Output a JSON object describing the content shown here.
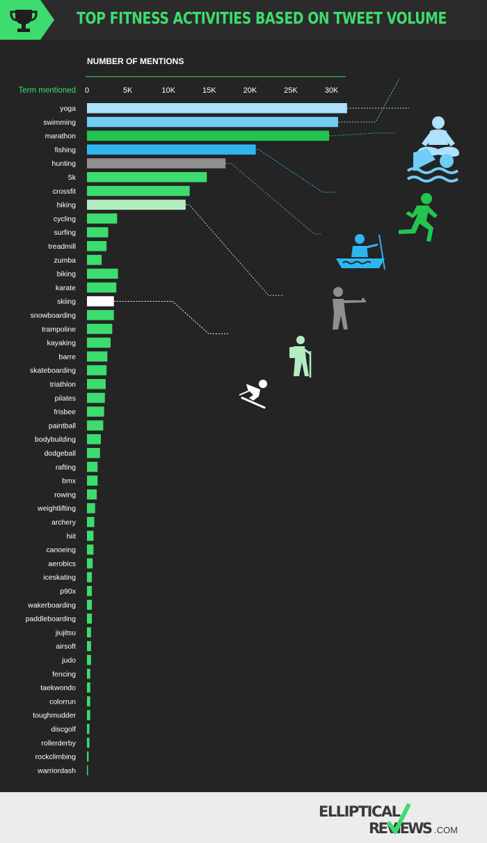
{
  "header": {
    "title": "TOP FITNESS ACTIVITIES BASED ON TWEET VOLUME",
    "trophy_icon": "trophy-icon"
  },
  "colors": {
    "background": "#242424",
    "accent_green": "#3ddc6e",
    "bar_default": "#3ddc6e"
  },
  "chart_data": {
    "type": "bar",
    "orientation": "horizontal",
    "title": "NUMBER OF MENTIONS",
    "ylabel": "Term mentioned",
    "xlim": [
      0,
      32000
    ],
    "xticks": [
      0,
      5000,
      10000,
      15000,
      20000,
      25000,
      30000
    ],
    "xtick_labels": [
      "0",
      "5K",
      "10K",
      "15K",
      "20K",
      "25K",
      "30K"
    ],
    "grid": false,
    "categories": [
      "yoga",
      "swimming",
      "marathon",
      "fishing",
      "hunting",
      "5k",
      "crossfit",
      "hiking",
      "cycling",
      "surfing",
      "treadmill",
      "zumba",
      "biking",
      "karate",
      "skiing",
      "snowboarding",
      "trampoline",
      "kayaking",
      "barre",
      "skateboarding",
      "triathlon",
      "pilates",
      "frisbee",
      "paintball",
      "bodybuilding",
      "dodgeball",
      "rafting",
      "bmx",
      "rowing",
      "weightlifting",
      "archery",
      "hiit",
      "canoeing",
      "aerobics",
      "iceskating",
      "p90x",
      "wakerboarding",
      "paddleboarding",
      "jiujitsu",
      "airsoft",
      "judo",
      "fencing",
      "taekwondo",
      "colorrun",
      "toughmudder",
      "discgolf",
      "rollerderby",
      "rockclimbing",
      "warriordash"
    ],
    "values": [
      31900,
      30800,
      29700,
      20700,
      17000,
      14700,
      12600,
      12100,
      3700,
      2600,
      2400,
      1800,
      3800,
      3600,
      3300,
      3300,
      3100,
      2900,
      2500,
      2400,
      2300,
      2200,
      2100,
      2000,
      1700,
      1600,
      1300,
      1300,
      1200,
      1000,
      900,
      800,
      800,
      700,
      600,
      600,
      600,
      600,
      500,
      500,
      500,
      400,
      400,
      400,
      400,
      300,
      300,
      200,
      100
    ],
    "highlighted": [
      {
        "category": "yoga",
        "color": "#aee1fb",
        "icon": "meditation-icon"
      },
      {
        "category": "swimming",
        "color": "#6fcdf6",
        "icon": "swimmer-icon"
      },
      {
        "category": "marathon",
        "color": "#22c54f",
        "icon": "runner-icon"
      },
      {
        "category": "fishing",
        "color": "#2fb6f0",
        "icon": "fishing-boat-icon"
      },
      {
        "category": "hunting",
        "color": "#8f8f8f",
        "icon": "hunter-icon"
      },
      {
        "category": "hiking",
        "color": "#b4ecc1",
        "icon": "hiker-icon"
      },
      {
        "category": "skiing",
        "color": "#ffffff",
        "icon": "skier-icon"
      }
    ]
  },
  "footer": {
    "logo_line1": "ELLIPTICAL",
    "logo_line2": "REVIEWS",
    "logo_suffix": ".COM"
  }
}
